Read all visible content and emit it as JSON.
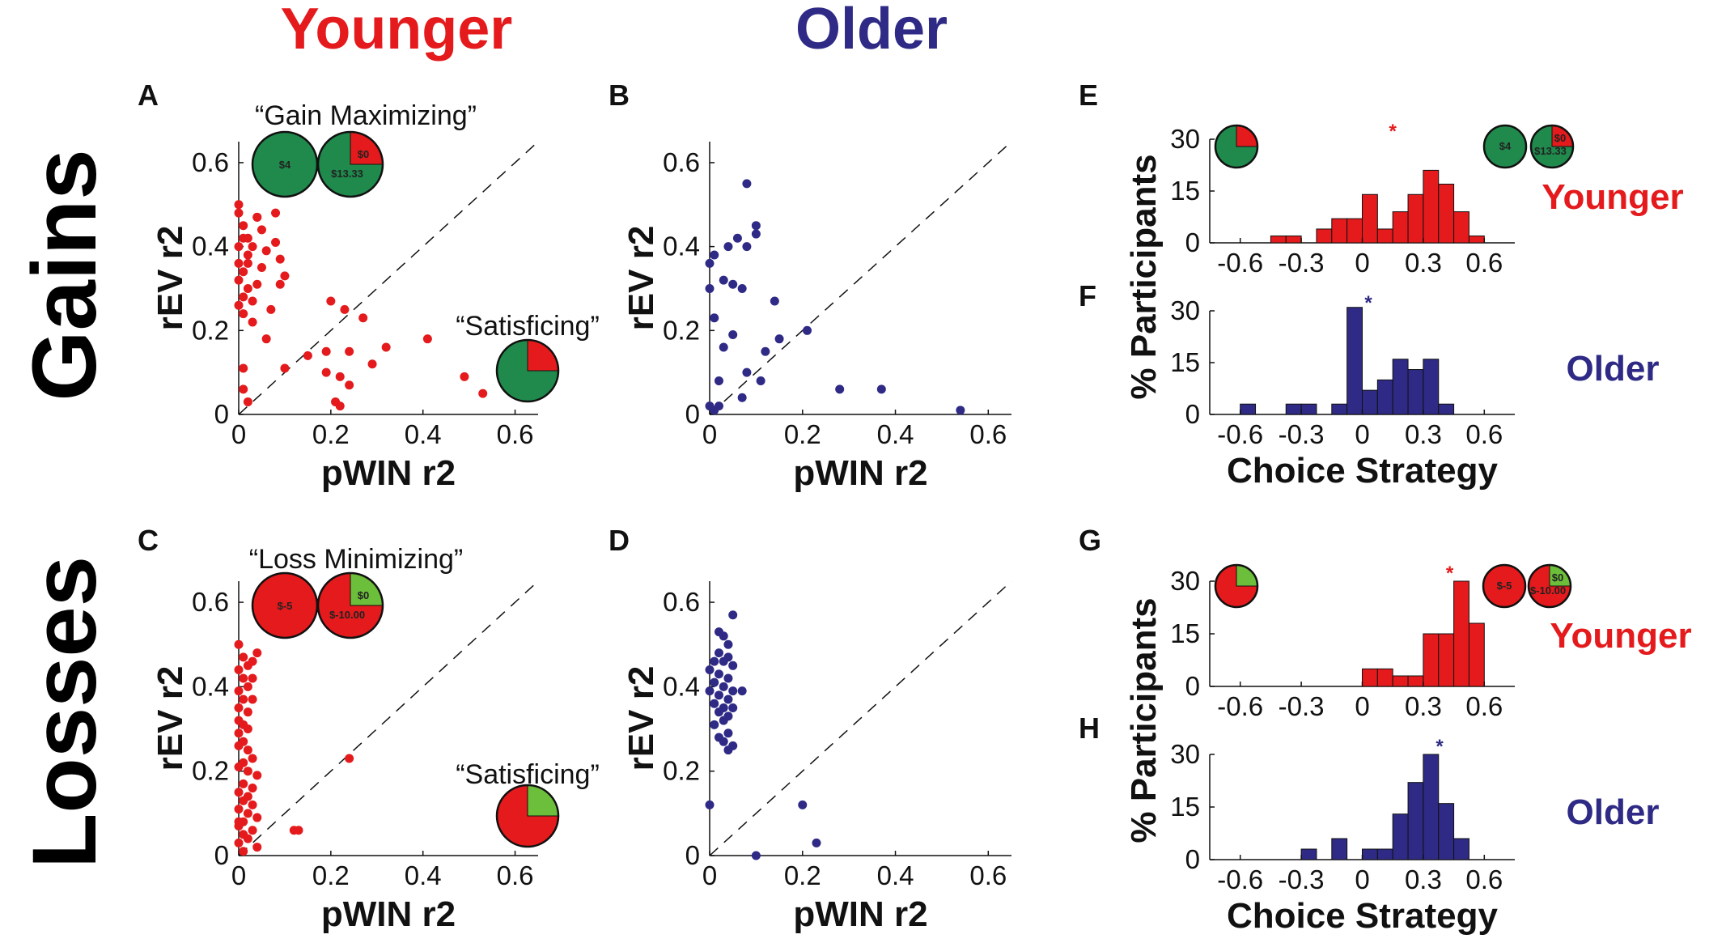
{
  "colors": {
    "younger": "#e41a1c",
    "older": "#2e2a85",
    "gain_green": "#1f8a4c",
    "loss_green": "#6cbf3a",
    "loss_red": "#e41a1c"
  },
  "headers": {
    "younger": "Younger",
    "older": "Older",
    "gains": "Gains",
    "losses": "Losses"
  },
  "scatter_axes": {
    "xlabel": "pWIN r2",
    "ylabel": "rEV r2",
    "x_ticks": [
      "0",
      "0.2",
      "0.4",
      "0.6"
    ],
    "y_ticks": [
      "0",
      "0.2",
      "0.4",
      "0.6"
    ]
  },
  "hist_axes": {
    "xlabel": "Choice Strategy",
    "ylabel": "% Participants",
    "x_ticks": [
      "-0.6",
      "-0.3",
      "0",
      "0.3",
      "0.6"
    ],
    "y_ticks": [
      "0",
      "15",
      "30"
    ]
  },
  "annotations": {
    "gain_max": "“Gain Maximizing”",
    "satisficing_gain": "“Satisficing”",
    "loss_min": "“Loss Minimizing”",
    "satisficing_loss": "“Satisficing”",
    "pie_gain_single": "$4",
    "pie_gain_zero": "$0",
    "pie_gain_big": "$13.33",
    "pie_loss_single": "$-5",
    "pie_loss_zero": "$0",
    "pie_loss_big": "$-10.00"
  },
  "chart_data": [
    {
      "panel": "A",
      "type": "scatter",
      "group": "Younger",
      "condition": "Gains",
      "xlabel": "pWIN r2",
      "ylabel": "rEV r2",
      "xlim": [
        0,
        0.65
      ],
      "ylim": [
        0,
        0.65
      ],
      "diagonal": true,
      "points": [
        [
          0,
          0.5
        ],
        [
          0,
          0.48
        ],
        [
          0.01,
          0.45
        ],
        [
          0.01,
          0.42
        ],
        [
          0,
          0.4
        ],
        [
          0.02,
          0.38
        ],
        [
          0,
          0.36
        ],
        [
          0.01,
          0.34
        ],
        [
          0,
          0.32
        ],
        [
          0.02,
          0.3
        ],
        [
          0.01,
          0.28
        ],
        [
          0,
          0.26
        ],
        [
          0.01,
          0.24
        ],
        [
          0.03,
          0.22
        ],
        [
          0.02,
          0.42
        ],
        [
          0.04,
          0.47
        ],
        [
          0.05,
          0.44
        ],
        [
          0.03,
          0.4
        ],
        [
          0.05,
          0.35
        ],
        [
          0.04,
          0.31
        ],
        [
          0.06,
          0.39
        ],
        [
          0.08,
          0.48
        ],
        [
          0.08,
          0.41
        ],
        [
          0.09,
          0.37
        ],
        [
          0.1,
          0.33
        ],
        [
          0.09,
          0.31
        ],
        [
          0.07,
          0.25
        ],
        [
          0.06,
          0.18
        ],
        [
          0.04,
          0.47
        ],
        [
          0.02,
          0.36
        ],
        [
          0.03,
          0.27
        ],
        [
          0.1,
          0.11
        ],
        [
          0.01,
          0.11
        ],
        [
          0.01,
          0.06
        ],
        [
          0.02,
          0.03
        ],
        [
          0.15,
          0.14
        ],
        [
          0.19,
          0.15
        ],
        [
          0.19,
          0.1
        ],
        [
          0.2,
          0.27
        ],
        [
          0.23,
          0.25
        ],
        [
          0.24,
          0.15
        ],
        [
          0.22,
          0.09
        ],
        [
          0.21,
          0.03
        ],
        [
          0.22,
          0.02
        ],
        [
          0.27,
          0.23
        ],
        [
          0.29,
          0.12
        ],
        [
          0.32,
          0.16
        ],
        [
          0.24,
          0.07
        ],
        [
          0.41,
          0.18
        ],
        [
          0.49,
          0.09
        ],
        [
          0.53,
          0.05
        ]
      ]
    },
    {
      "panel": "B",
      "type": "scatter",
      "group": "Older",
      "condition": "Gains",
      "xlabel": "pWIN r2",
      "ylabel": "rEV r2",
      "xlim": [
        0,
        0.65
      ],
      "ylim": [
        0,
        0.65
      ],
      "diagonal": true,
      "points": [
        [
          0.08,
          0.55
        ],
        [
          0.1,
          0.45
        ],
        [
          0.1,
          0.43
        ],
        [
          0.06,
          0.42
        ],
        [
          0.04,
          0.4
        ],
        [
          0.08,
          0.4
        ],
        [
          0.01,
          0.38
        ],
        [
          0,
          0.36
        ],
        [
          0.03,
          0.32
        ],
        [
          0.05,
          0.31
        ],
        [
          0.07,
          0.3
        ],
        [
          0,
          0.3
        ],
        [
          0.14,
          0.27
        ],
        [
          0.01,
          0.23
        ],
        [
          0.05,
          0.19
        ],
        [
          0.03,
          0.16
        ],
        [
          0.15,
          0.18
        ],
        [
          0.21,
          0.2
        ],
        [
          0.12,
          0.15
        ],
        [
          0.08,
          0.1
        ],
        [
          0.11,
          0.08
        ],
        [
          0.02,
          0.08
        ],
        [
          0.07,
          0.04
        ],
        [
          0.02,
          0.02
        ],
        [
          0.01,
          0.01
        ],
        [
          0,
          0.02
        ],
        [
          0.28,
          0.06
        ],
        [
          0.37,
          0.06
        ],
        [
          0.54,
          0.01
        ]
      ]
    },
    {
      "panel": "C",
      "type": "scatter",
      "group": "Younger",
      "condition": "Losses",
      "xlabel": "pWIN r2",
      "ylabel": "rEV r2",
      "xlim": [
        0,
        0.65
      ],
      "ylim": [
        0,
        0.65
      ],
      "diagonal": true,
      "points": [
        [
          0,
          0.5
        ],
        [
          0.01,
          0.47
        ],
        [
          0.04,
          0.48
        ],
        [
          0.03,
          0.46
        ],
        [
          0.02,
          0.45
        ],
        [
          0,
          0.44
        ],
        [
          0.01,
          0.42
        ],
        [
          0.03,
          0.42
        ],
        [
          0.02,
          0.4
        ],
        [
          0,
          0.39
        ],
        [
          0.01,
          0.37
        ],
        [
          0.03,
          0.37
        ],
        [
          0,
          0.35
        ],
        [
          0.02,
          0.34
        ],
        [
          0,
          0.32
        ],
        [
          0.01,
          0.31
        ],
        [
          0.02,
          0.3
        ],
        [
          0,
          0.29
        ],
        [
          0.01,
          0.27
        ],
        [
          0,
          0.26
        ],
        [
          0.02,
          0.25
        ],
        [
          0.03,
          0.23
        ],
        [
          0.01,
          0.22
        ],
        [
          0,
          0.21
        ],
        [
          0.02,
          0.2
        ],
        [
          0.04,
          0.19
        ],
        [
          0.01,
          0.17
        ],
        [
          0.03,
          0.16
        ],
        [
          0,
          0.15
        ],
        [
          0.02,
          0.14
        ],
        [
          0.01,
          0.13
        ],
        [
          0.03,
          0.12
        ],
        [
          0,
          0.11
        ],
        [
          0.02,
          0.1
        ],
        [
          0.04,
          0.09
        ],
        [
          0.01,
          0.08
        ],
        [
          0,
          0.07
        ],
        [
          0.03,
          0.06
        ],
        [
          0.01,
          0.05
        ],
        [
          0.02,
          0.04
        ],
        [
          0,
          0.03
        ],
        [
          0.04,
          0.02
        ],
        [
          0.01,
          0.01
        ],
        [
          0,
          0.08
        ],
        [
          0.12,
          0.06
        ],
        [
          0.13,
          0.06
        ],
        [
          0.24,
          0.23
        ]
      ]
    },
    {
      "panel": "D",
      "type": "scatter",
      "group": "Older",
      "condition": "Losses",
      "xlabel": "pWIN r2",
      "ylabel": "rEV r2",
      "xlim": [
        0,
        0.65
      ],
      "ylim": [
        0,
        0.65
      ],
      "diagonal": true,
      "points": [
        [
          0.02,
          0.53
        ],
        [
          0.03,
          0.52
        ],
        [
          0.05,
          0.57
        ],
        [
          0.04,
          0.5
        ],
        [
          0.02,
          0.48
        ],
        [
          0.04,
          0.47
        ],
        [
          0.01,
          0.46
        ],
        [
          0.03,
          0.46
        ],
        [
          0.05,
          0.45
        ],
        [
          0,
          0.44
        ],
        [
          0.02,
          0.43
        ],
        [
          0.04,
          0.42
        ],
        [
          0.01,
          0.41
        ],
        [
          0.03,
          0.4
        ],
        [
          0,
          0.39
        ],
        [
          0.05,
          0.39
        ],
        [
          0.07,
          0.39
        ],
        [
          0.02,
          0.38
        ],
        [
          0.04,
          0.37
        ],
        [
          0.01,
          0.36
        ],
        [
          0.03,
          0.35
        ],
        [
          0.05,
          0.35
        ],
        [
          0.02,
          0.34
        ],
        [
          0.04,
          0.33
        ],
        [
          0.03,
          0.32
        ],
        [
          0.01,
          0.31
        ],
        [
          0.04,
          0.29
        ],
        [
          0.02,
          0.28
        ],
        [
          0.03,
          0.27
        ],
        [
          0.05,
          0.26
        ],
        [
          0.04,
          0.25
        ],
        [
          0,
          0.12
        ],
        [
          0.2,
          0.12
        ],
        [
          0.23,
          0.03
        ],
        [
          0.1,
          0
        ]
      ]
    },
    {
      "panel": "E",
      "type": "bar",
      "group": "Younger",
      "condition": "Gains",
      "xlabel": "",
      "ylabel": "% Participants",
      "xlim": [
        -0.75,
        0.75
      ],
      "ylim": [
        0,
        30
      ],
      "bin_width": 0.075,
      "significance_marker": "*",
      "marker_x": 0.15,
      "bins": [
        -0.6,
        -0.525,
        -0.45,
        -0.375,
        -0.3,
        -0.225,
        -0.15,
        -0.075,
        0,
        0.075,
        0.15,
        0.225,
        0.3,
        0.375,
        0.45,
        0.525
      ],
      "values": [
        0,
        0,
        2,
        2,
        0,
        4,
        7,
        7,
        14,
        4,
        9,
        14,
        21,
        17,
        9,
        2
      ]
    },
    {
      "panel": "F",
      "type": "bar",
      "group": "Older",
      "condition": "Gains",
      "xlabel": "Choice Strategy",
      "ylabel": "% Participants",
      "xlim": [
        -0.75,
        0.75
      ],
      "ylim": [
        0,
        30
      ],
      "bin_width": 0.075,
      "significance_marker": "*",
      "marker_x": 0.03,
      "bins": [
        -0.6,
        -0.525,
        -0.45,
        -0.375,
        -0.3,
        -0.225,
        -0.15,
        -0.075,
        0,
        0.075,
        0.15,
        0.225,
        0.3,
        0.375,
        0.45,
        0.525
      ],
      "values": [
        3,
        0,
        0,
        3,
        3,
        0,
        3,
        31,
        7,
        10,
        16,
        13,
        16,
        3,
        0,
        0
      ]
    },
    {
      "panel": "G",
      "type": "bar",
      "group": "Younger",
      "condition": "Losses",
      "xlabel": "",
      "ylabel": "% Participants",
      "xlim": [
        -0.75,
        0.75
      ],
      "ylim": [
        0,
        30
      ],
      "bin_width": 0.075,
      "significance_marker": "*",
      "marker_x": 0.43,
      "bins": [
        -0.6,
        -0.525,
        -0.45,
        -0.375,
        -0.3,
        -0.225,
        -0.15,
        -0.075,
        0,
        0.075,
        0.15,
        0.225,
        0.3,
        0.375,
        0.45,
        0.525
      ],
      "values": [
        0,
        0,
        0,
        0,
        0,
        0,
        0,
        0,
        5,
        5,
        3,
        3,
        15,
        15,
        30,
        18
      ]
    },
    {
      "panel": "H",
      "type": "bar",
      "group": "Older",
      "condition": "Losses",
      "xlabel": "Choice Strategy",
      "ylabel": "% Participants",
      "xlim": [
        -0.75,
        0.75
      ],
      "ylim": [
        0,
        30
      ],
      "bin_width": 0.075,
      "significance_marker": "*",
      "marker_x": 0.38,
      "bins": [
        -0.6,
        -0.525,
        -0.45,
        -0.375,
        -0.3,
        -0.225,
        -0.15,
        -0.075,
        0,
        0.075,
        0.15,
        0.225,
        0.3,
        0.375,
        0.45,
        0.525
      ],
      "values": [
        0,
        0,
        0,
        0,
        3,
        0,
        6,
        0,
        3,
        3,
        13,
        22,
        30,
        16,
        6,
        0
      ]
    }
  ]
}
